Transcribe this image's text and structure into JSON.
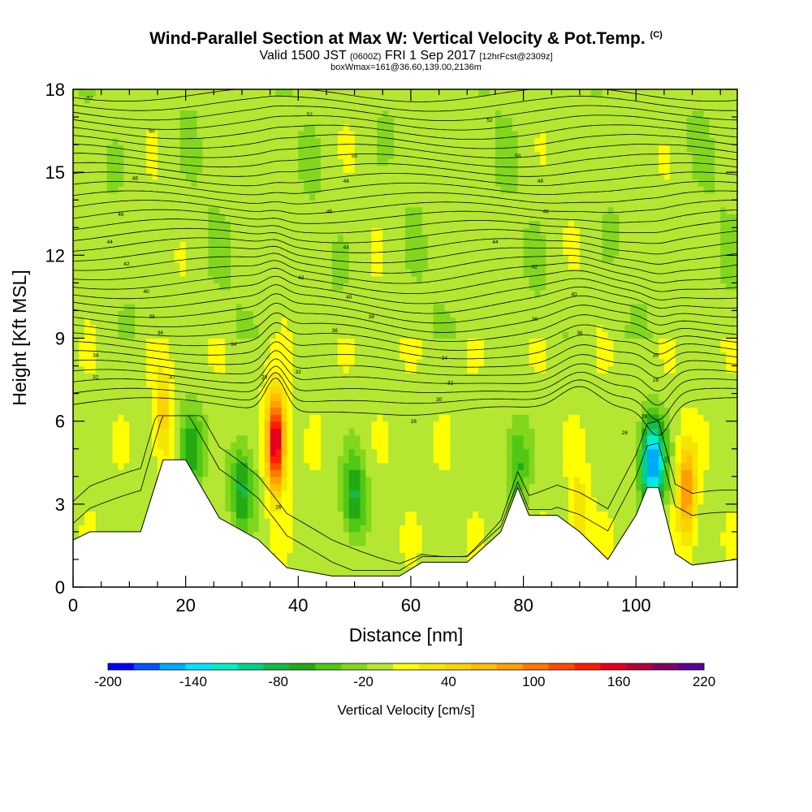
{
  "header": {
    "title": "Wind-Parallel Section at Max W: Vertical Velocity & Pot.Temp.",
    "title_suffix": "(C)",
    "valid_prefix": "Valid 1500 JST",
    "valid_utc": "(0600Z)",
    "valid_date": "FRI 1 Sep 2017",
    "valid_fcst": "[12hrFcst@2309z]",
    "subtitle": "boxWmax=161@36.60,139.00,2136m"
  },
  "chart_data": {
    "type": "heatmap",
    "xlabel": "Distance [nm]",
    "ylabel": "Height [Kft MSL]",
    "xlim": [
      0,
      118
    ],
    "ylim": [
      0,
      18
    ],
    "xticks": [
      0,
      20,
      40,
      60,
      80,
      100
    ],
    "yticks": [
      0,
      3,
      6,
      9,
      12,
      15,
      18
    ],
    "colorbar": {
      "label": "Vertical Velocity [cm/s]",
      "tick_labels": [
        "-200",
        "-140",
        "-80",
        "-20",
        "40",
        "100",
        "160",
        "220"
      ],
      "min": -200,
      "max": 220,
      "step": 20,
      "colors": [
        "#0000ff",
        "#0055ff",
        "#00aaff",
        "#00e5ff",
        "#00f0c8",
        "#00d28c",
        "#19b946",
        "#23aa14",
        "#50c814",
        "#82d71e",
        "#b4e632",
        "#ffff00",
        "#f5e600",
        "#ffd200",
        "#ffbe00",
        "#ffa000",
        "#ff7800",
        "#ff4b00",
        "#ff1e00",
        "#e6001e",
        "#b4003c",
        "#820064",
        "#5a0096"
      ]
    },
    "terrain": [
      [
        0,
        1.7
      ],
      [
        3,
        2
      ],
      [
        12,
        2
      ],
      [
        16,
        4.6
      ],
      [
        20,
        4.6
      ],
      [
        26,
        2.5
      ],
      [
        33,
        1.7
      ],
      [
        38,
        0.7
      ],
      [
        46,
        0.4
      ],
      [
        58,
        0.4
      ],
      [
        62,
        0.9
      ],
      [
        70,
        0.9
      ],
      [
        76,
        2
      ],
      [
        79,
        3.6
      ],
      [
        81,
        2.6
      ],
      [
        86,
        2.6
      ],
      [
        90,
        2
      ],
      [
        95,
        1
      ],
      [
        100,
        2.6
      ],
      [
        102,
        3.6
      ],
      [
        104,
        3.6
      ],
      [
        107,
        1.2
      ],
      [
        110,
        0.8
      ],
      [
        118,
        1
      ]
    ],
    "updrafts": [
      {
        "x": 36,
        "z": 5.3,
        "w": 200
      },
      {
        "x": 109,
        "z": 3.5,
        "w": 110
      },
      {
        "x": 16,
        "z": 6.2,
        "w": 60
      },
      {
        "x": 90,
        "z": 2.5,
        "w": 50
      }
    ],
    "downdrafts": [
      {
        "x": 103,
        "z": 4.5,
        "w": -180
      },
      {
        "x": 21,
        "z": 5.0,
        "w": -80
      },
      {
        "x": 30,
        "z": 3.6,
        "w": -80
      },
      {
        "x": 50,
        "z": 3.3,
        "w": -80
      },
      {
        "x": 79,
        "z": 4.5,
        "w": -60
      }
    ],
    "theta_contours": {
      "levels": [
        24,
        26,
        28,
        30,
        32,
        34,
        36,
        38,
        40,
        42,
        44,
        46,
        48,
        50,
        52
      ],
      "labels": [
        {
          "text": "52",
          "x": 3,
          "z": 17.7
        },
        {
          "text": "50",
          "x": 14,
          "z": 16.5
        },
        {
          "text": "48",
          "x": 11,
          "z": 14.8
        },
        {
          "text": "46",
          "x": 8.5,
          "z": 13.5
        },
        {
          "text": "44",
          "x": 6.5,
          "z": 12.5
        },
        {
          "text": "42",
          "x": 9.5,
          "z": 11.7
        },
        {
          "text": "40",
          "x": 13,
          "z": 10.7
        },
        {
          "text": "38",
          "x": 14,
          "z": 9.8
        },
        {
          "text": "36",
          "x": 15.5,
          "z": 9.2
        },
        {
          "text": "34",
          "x": 4,
          "z": 8.4
        },
        {
          "text": "32",
          "x": 4,
          "z": 7.6
        },
        {
          "text": "30",
          "x": 17.5,
          "z": 7.6
        },
        {
          "text": "28",
          "x": 34,
          "z": 7.6
        },
        {
          "text": "26",
          "x": 36.5,
          "z": 2.9
        },
        {
          "text": "52",
          "x": 42,
          "z": 17.1
        },
        {
          "text": "50",
          "x": 50,
          "z": 15.6
        },
        {
          "text": "48",
          "x": 48.5,
          "z": 14.7
        },
        {
          "text": "46",
          "x": 45.5,
          "z": 13.6
        },
        {
          "text": "44",
          "x": 48.5,
          "z": 12.3
        },
        {
          "text": "42",
          "x": 40.5,
          "z": 11.2
        },
        {
          "text": "40",
          "x": 49,
          "z": 10.5
        },
        {
          "text": "38",
          "x": 53,
          "z": 9.8
        },
        {
          "text": "36",
          "x": 46.5,
          "z": 9.3
        },
        {
          "text": "34",
          "x": 28.5,
          "z": 8.8
        },
        {
          "text": "32",
          "x": 40,
          "z": 7.8
        },
        {
          "text": "52",
          "x": 74,
          "z": 16.9
        },
        {
          "text": "50",
          "x": 79,
          "z": 15.6
        },
        {
          "text": "48",
          "x": 83,
          "z": 14.7
        },
        {
          "text": "46",
          "x": 84,
          "z": 13.6
        },
        {
          "text": "44",
          "x": 75,
          "z": 12.5
        },
        {
          "text": "42",
          "x": 82,
          "z": 11.6
        },
        {
          "text": "40",
          "x": 89,
          "z": 10.6
        },
        {
          "text": "38",
          "x": 82,
          "z": 9.7
        },
        {
          "text": "36",
          "x": 90,
          "z": 9.2
        },
        {
          "text": "34",
          "x": 66,
          "z": 8.3
        },
        {
          "text": "32",
          "x": 67,
          "z": 7.4
        },
        {
          "text": "30",
          "x": 65,
          "z": 6.8
        },
        {
          "text": "28",
          "x": 101.5,
          "z": 6.2
        },
        {
          "text": "26",
          "x": 60.5,
          "z": 6.0
        },
        {
          "text": "26",
          "x": 98,
          "z": 5.6
        },
        {
          "text": "28",
          "x": 103.5,
          "z": 7.5
        },
        {
          "text": "30",
          "x": 103.5,
          "z": 8.4
        }
      ]
    }
  }
}
